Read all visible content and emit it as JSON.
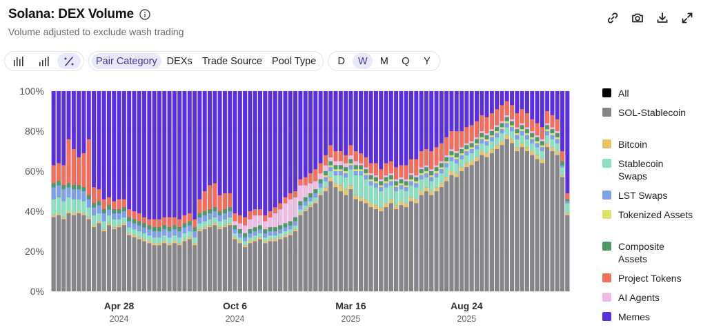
{
  "header": {
    "title": "Solana: DEX Volume",
    "subtitle": "Volume adjusted to exclude wash trading"
  },
  "actions": [
    {
      "icon": "link-icon"
    },
    {
      "icon": "camera-icon"
    },
    {
      "icon": "download-icon"
    },
    {
      "icon": "expand-icon"
    }
  ],
  "toolbar": {
    "chart_types": [
      {
        "icon": "bar-chart-icon",
        "active": false
      },
      {
        "icon": "stacked-bar-chart-icon",
        "active": false
      },
      {
        "icon": "percent-icon",
        "active": true
      }
    ],
    "breakdowns": [
      {
        "label": "Pair Category",
        "active": true
      },
      {
        "label": "DEXs",
        "active": false
      },
      {
        "label": "Trade Source",
        "active": false
      },
      {
        "label": "Pool Type",
        "active": false
      }
    ],
    "periods": [
      {
        "label": "D",
        "active": false
      },
      {
        "label": "W",
        "active": true
      },
      {
        "label": "M",
        "active": false
      },
      {
        "label": "Q",
        "active": false
      },
      {
        "label": "Y",
        "active": false
      }
    ]
  },
  "chart_data": {
    "type": "bar",
    "stacked": "percent",
    "ylim": [
      0,
      100
    ],
    "y_ticks": [
      "0%",
      "20%",
      "40%",
      "60%",
      "80%",
      "100%"
    ],
    "x_ticks": [
      {
        "index": 13,
        "label": "Apr 28",
        "year": "2024"
      },
      {
        "index": 36,
        "label": "Oct 6",
        "year": "2024"
      },
      {
        "index": 59,
        "label": "Mar 16",
        "year": "2025"
      },
      {
        "index": 82,
        "label": "Aug 24",
        "year": "2025"
      }
    ],
    "colors": {
      "All": "#000000",
      "SOL-Stablecoin": "#868686",
      "Bitcoin": "#e7c36a",
      "Stablecoin Swaps": "#8ce0be",
      "LST Swaps": "#7ea1ea",
      "Tokenized Assets": "#dfe16a",
      "Composite Assets": "#4c9a66",
      "Project Tokens": "#f0705b",
      "AI Agents": "#efbde0",
      "Memes": "#5b2fd9"
    },
    "legend": [
      {
        "name": "All",
        "color": "#000000"
      },
      {
        "name": "SOL-Stablecoin",
        "color": "#868686"
      },
      {
        "name": "Bitcoin",
        "color": "#e7c36a"
      },
      {
        "name": "Stablecoin Swaps",
        "color": "#8ce0be"
      },
      {
        "name": "LST Swaps",
        "color": "#7ea1ea"
      },
      {
        "name": "Tokenized Assets",
        "color": "#dfe16a"
      },
      {
        "name": "Composite Assets",
        "color": "#4c9a66"
      },
      {
        "name": "Project Tokens",
        "color": "#f0705b"
      },
      {
        "name": "AI Agents",
        "color": "#efbde0"
      },
      {
        "name": "Memes",
        "color": "#5b2fd9"
      }
    ],
    "series_order": [
      "SOL-Stablecoin",
      "Bitcoin",
      "Stablecoin Swaps",
      "LST Swaps",
      "Tokenized Assets",
      "Composite Assets",
      "AI Agents",
      "Project Tokens"
    ],
    "series": [
      {
        "name": "SOL-Stablecoin",
        "values": [
          37,
          38,
          36,
          39,
          38,
          39,
          38,
          36,
          32,
          34,
          30,
          33,
          31,
          32,
          33,
          28,
          27,
          26,
          25,
          24,
          23,
          23,
          24,
          23,
          24,
          23,
          25,
          26,
          23,
          30,
          31,
          32,
          33,
          31,
          32,
          33,
          26,
          24,
          22,
          24,
          25,
          26,
          24,
          25,
          25,
          26,
          27,
          28,
          30,
          38,
          40,
          42,
          44,
          48,
          50,
          55,
          52,
          50,
          48,
          51,
          46,
          45,
          44,
          42,
          41,
          40,
          42,
          44,
          41,
          43,
          42,
          45,
          44,
          48,
          50,
          48,
          50,
          52,
          55,
          58,
          57,
          60,
          62,
          63,
          65,
          68,
          67,
          69,
          71,
          73,
          76,
          74,
          70,
          72,
          70,
          68,
          66,
          64,
          72,
          70,
          68,
          57,
          38
        ]
      },
      {
        "name": "Bitcoin",
        "values": [
          1,
          1,
          1,
          1,
          1,
          1,
          1,
          1,
          1,
          1,
          1,
          1,
          1,
          1,
          1,
          1,
          1,
          1,
          1,
          1,
          1,
          1,
          1,
          1,
          1,
          1,
          1,
          1,
          1,
          1,
          1,
          1,
          1,
          1,
          1,
          1,
          1,
          1,
          1,
          1,
          1,
          1,
          1,
          1,
          1,
          1,
          1,
          1,
          1,
          1,
          1,
          1,
          1,
          1,
          2,
          2,
          2,
          3,
          3,
          2,
          2,
          2,
          2,
          2,
          2,
          2,
          2,
          2,
          2,
          2,
          2,
          2,
          2,
          2,
          2,
          2,
          2,
          2,
          2,
          2,
          2,
          2,
          2,
          2,
          2,
          2,
          2,
          2,
          2,
          2,
          2,
          2,
          2,
          2,
          2,
          2,
          2,
          2,
          2,
          2,
          2,
          1,
          1
        ]
      },
      {
        "name": "Stablecoin Swaps",
        "values": [
          8,
          8,
          8,
          7,
          7,
          6,
          6,
          5,
          5,
          4,
          4,
          4,
          4,
          3,
          3,
          3,
          3,
          3,
          3,
          3,
          3,
          3,
          3,
          3,
          3,
          3,
          3,
          3,
          3,
          3,
          3,
          3,
          3,
          3,
          3,
          3,
          2,
          2,
          2,
          2,
          2,
          2,
          2,
          2,
          2,
          2,
          2,
          2,
          2,
          2,
          2,
          2,
          2,
          3,
          3,
          3,
          4,
          5,
          6,
          8,
          10,
          11,
          10,
          9,
          9,
          8,
          8,
          7,
          7,
          6,
          6,
          6,
          6,
          6,
          5,
          5,
          5,
          5,
          5,
          5,
          5,
          4,
          4,
          4,
          4,
          4,
          4,
          4,
          4,
          4,
          4,
          4,
          4,
          4,
          4,
          4,
          4,
          4,
          4,
          4,
          4,
          4,
          5
        ]
      },
      {
        "name": "LST Swaps",
        "values": [
          6,
          6,
          6,
          5,
          5,
          5,
          5,
          4,
          4,
          4,
          4,
          3,
          3,
          3,
          3,
          3,
          3,
          3,
          3,
          3,
          3,
          3,
          3,
          3,
          3,
          3,
          3,
          3,
          3,
          3,
          3,
          3,
          3,
          3,
          3,
          3,
          2,
          2,
          2,
          2,
          2,
          2,
          2,
          2,
          2,
          2,
          2,
          2,
          2,
          2,
          2,
          2,
          2,
          2,
          2,
          2,
          2,
          2,
          2,
          2,
          2,
          2,
          2,
          2,
          2,
          2,
          2,
          2,
          2,
          2,
          2,
          2,
          2,
          2,
          2,
          2,
          2,
          2,
          2,
          2,
          2,
          2,
          2,
          2,
          2,
          2,
          2,
          2,
          2,
          2,
          2,
          2,
          2,
          2,
          2,
          2,
          2,
          2,
          2,
          2,
          2,
          1,
          1
        ]
      },
      {
        "name": "Tokenized Assets",
        "values": [
          0,
          0,
          0,
          0,
          0,
          0,
          0,
          0,
          0,
          0,
          0,
          0,
          0,
          0,
          0,
          0,
          0,
          0,
          0,
          0,
          0,
          0,
          0,
          0,
          0,
          0,
          0,
          0,
          0,
          0,
          0,
          0,
          0,
          0,
          0,
          0,
          0,
          0,
          0,
          0,
          0,
          0,
          0,
          0,
          0,
          0,
          0,
          0,
          0,
          0,
          0,
          0,
          0,
          0,
          1,
          1,
          1,
          1,
          1,
          1,
          1,
          1,
          1,
          1,
          1,
          1,
          1,
          1,
          1,
          1,
          1,
          1,
          1,
          1,
          1,
          1,
          1,
          1,
          1,
          1,
          1,
          1,
          1,
          1,
          1,
          1,
          1,
          1,
          1,
          1,
          1,
          1,
          1,
          1,
          1,
          1,
          1,
          1,
          1,
          1,
          1,
          0,
          0
        ]
      },
      {
        "name": "Composite Assets",
        "values": [
          2,
          2,
          2,
          2,
          2,
          2,
          2,
          2,
          2,
          2,
          2,
          2,
          2,
          2,
          2,
          2,
          2,
          2,
          2,
          2,
          2,
          2,
          2,
          2,
          2,
          2,
          2,
          2,
          2,
          2,
          2,
          2,
          2,
          2,
          2,
          2,
          2,
          2,
          2,
          2,
          2,
          2,
          2,
          2,
          2,
          2,
          2,
          2,
          2,
          2,
          2,
          2,
          2,
          2,
          2,
          2,
          2,
          2,
          2,
          2,
          2,
          2,
          2,
          2,
          2,
          2,
          2,
          2,
          2,
          2,
          2,
          2,
          2,
          2,
          2,
          2,
          2,
          2,
          2,
          2,
          2,
          2,
          2,
          2,
          2,
          2,
          2,
          2,
          2,
          2,
          2,
          2,
          2,
          2,
          2,
          2,
          2,
          2,
          2,
          2,
          2,
          2,
          1
        ]
      },
      {
        "name": "AI Agents",
        "values": [
          0,
          0,
          0,
          0,
          0,
          0,
          0,
          0,
          0,
          0,
          0,
          0,
          0,
          0,
          0,
          0,
          0,
          0,
          0,
          0,
          0,
          0,
          0,
          0,
          0,
          0,
          0,
          0,
          0,
          0,
          0,
          0,
          0,
          0,
          0,
          0,
          2,
          3,
          4,
          5,
          6,
          5,
          4,
          5,
          7,
          8,
          10,
          11,
          10,
          8,
          6,
          5,
          4,
          3,
          3,
          2,
          2,
          2,
          2,
          2,
          2,
          1,
          1,
          1,
          1,
          1,
          1,
          1,
          1,
          1,
          1,
          1,
          1,
          1,
          1,
          1,
          1,
          1,
          1,
          1,
          1,
          1,
          1,
          1,
          1,
          1,
          1,
          1,
          1,
          1,
          1,
          1,
          1,
          1,
          1,
          1,
          1,
          1,
          1,
          1,
          1,
          0,
          0
        ]
      },
      {
        "name": "Project Tokens",
        "values": [
          9,
          9,
          10,
          22,
          18,
          14,
          17,
          28,
          8,
          6,
          5,
          4,
          4,
          5,
          4,
          4,
          4,
          4,
          3,
          3,
          4,
          4,
          4,
          5,
          4,
          4,
          4,
          4,
          4,
          7,
          10,
          12,
          12,
          8,
          8,
          7,
          4,
          4,
          4,
          4,
          3,
          3,
          3,
          3,
          3,
          3,
          3,
          3,
          3,
          3,
          4,
          5,
          6,
          5,
          5,
          6,
          5,
          5,
          4,
          5,
          5,
          5,
          5,
          5,
          6,
          5,
          6,
          6,
          6,
          6,
          7,
          7,
          8,
          8,
          8,
          9,
          9,
          9,
          9,
          9,
          10,
          8,
          8,
          8,
          8,
          8,
          8,
          8,
          8,
          8,
          7,
          7,
          7,
          7,
          7,
          6,
          6,
          6,
          6,
          6,
          6,
          5,
          3
        ]
      }
    ]
  }
}
